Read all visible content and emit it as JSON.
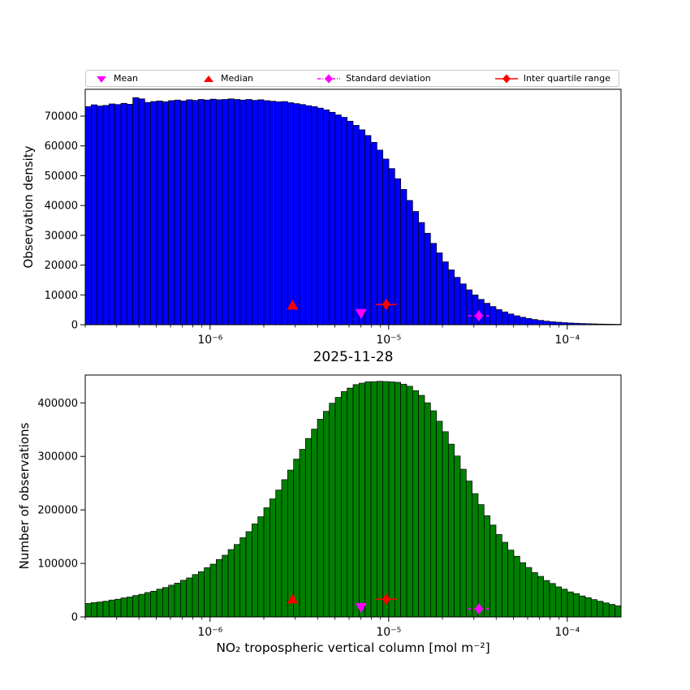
{
  "figure": {
    "title": "2025-11-28",
    "background": "#ffffff"
  },
  "legend": {
    "items": [
      {
        "label": "Mean",
        "marker": "triangle-down",
        "color": "#ff00ff",
        "line": "none"
      },
      {
        "label": "Median",
        "marker": "triangle-up",
        "color": "#ff0000",
        "line": "none"
      },
      {
        "label": "Standard deviation",
        "marker": "diamond",
        "color": "#ff00ff",
        "line": "dashdot"
      },
      {
        "label": "Inter quartile range",
        "marker": "diamond",
        "color": "#ff0000",
        "line": "solid"
      }
    ]
  },
  "chart_data": [
    {
      "type": "bar",
      "subtype": "histogram",
      "x_scale": "log",
      "xlim": [
        2e-07,
        0.0002
      ],
      "bin_edges_log10": {
        "min": -6.699,
        "max": -3.699,
        "count": 90
      },
      "values": [
        73200,
        73800,
        73400,
        73600,
        74100,
        73900,
        74300,
        74000,
        76200,
        75800,
        74600,
        74900,
        75100,
        74800,
        75200,
        75400,
        75100,
        75500,
        75300,
        75600,
        75400,
        75700,
        75500,
        75600,
        75800,
        75600,
        75400,
        75600,
        75300,
        75500,
        75200,
        75000,
        74800,
        74900,
        74500,
        74200,
        73900,
        73500,
        73200,
        72700,
        72100,
        71300,
        70400,
        69600,
        68300,
        66900,
        65400,
        63500,
        61200,
        58600,
        55600,
        52400,
        49000,
        45400,
        41700,
        38000,
        34300,
        30700,
        27300,
        24100,
        21100,
        18400,
        15900,
        13700,
        11700,
        10000,
        8500,
        7200,
        6100,
        5100,
        4300,
        3600,
        3000,
        2500,
        2100,
        1750,
        1450,
        1200,
        1000,
        840,
        700,
        580,
        480,
        400,
        340,
        280,
        230,
        195,
        160,
        135
      ],
      "title": "",
      "xlabel": "",
      "ylabel": "Observation density",
      "ylim": [
        0,
        79000
      ],
      "yticks": [
        0,
        10000,
        20000,
        30000,
        40000,
        50000,
        60000,
        70000
      ],
      "xticks": [
        {
          "value": 1e-06,
          "label": "10⁻⁶"
        },
        {
          "value": 1e-05,
          "label": "10⁻⁵"
        },
        {
          "value": 0.0001,
          "label": "10⁻⁴"
        }
      ],
      "grid": false,
      "bar_color": "#0000ff",
      "bar_edge": "#000000",
      "markers": [
        {
          "name": "mean",
          "shape": "triangle-down",
          "color": "#ff00ff",
          "x": 7e-06,
          "y": 3800,
          "line": "none"
        },
        {
          "name": "median",
          "shape": "triangle-up",
          "color": "#ff0000",
          "x": 2.9e-06,
          "y": 6500,
          "line": "none"
        },
        {
          "name": "standard-deviation",
          "shape": "diamond",
          "color": "#ff00ff",
          "x": 3.2e-05,
          "y": 3000,
          "line": "dashdot"
        },
        {
          "name": "inter-quartile-range",
          "shape": "diamond",
          "color": "#ff0000",
          "x": 9.7e-06,
          "y": 6800,
          "line": "solid"
        }
      ]
    },
    {
      "type": "bar",
      "subtype": "histogram",
      "x_scale": "log",
      "xlim": [
        2e-07,
        0.0002
      ],
      "bin_edges_log10": {
        "min": -6.699,
        "max": -3.699,
        "count": 90
      },
      "values": [
        25100,
        26700,
        27900,
        29400,
        31600,
        33100,
        35500,
        37200,
        40100,
        42300,
        45600,
        48100,
        51900,
        55000,
        59400,
        63200,
        68500,
        72900,
        79200,
        84600,
        92100,
        98600,
        107400,
        115300,
        125900,
        135400,
        148000,
        159300,
        173800,
        187200,
        204000,
        220600,
        237100,
        256500,
        274400,
        294900,
        313200,
        333500,
        350900,
        369400,
        384200,
        399300,
        410200,
        421100,
        427600,
        434100,
        436800,
        439400,
        439600,
        440300,
        439800,
        439200,
        438400,
        434900,
        431000,
        422800,
        414000,
        400100,
        385200,
        365700,
        346100,
        322800,
        300700,
        276000,
        253900,
        230400,
        209900,
        189200,
        171700,
        154000,
        139500,
        124900,
        113400,
        101500,
        92400,
        82900,
        75800,
        68100,
        62500,
        56200,
        51900,
        46800,
        43500,
        39200,
        36100,
        32400,
        29300,
        26200,
        23400,
        20800
      ],
      "title": "",
      "xlabel": "NO₂ tropospheric vertical column [mol m⁻²]",
      "ylabel": "Number of observations",
      "ylim": [
        0,
        452000
      ],
      "yticks": [
        0,
        100000,
        200000,
        300000,
        400000
      ],
      "xticks": [
        {
          "value": 1e-06,
          "label": "10⁻⁶"
        },
        {
          "value": 1e-05,
          "label": "10⁻⁵"
        },
        {
          "value": 0.0001,
          "label": "10⁻⁴"
        }
      ],
      "grid": false,
      "bar_color": "#008000",
      "bar_edge": "#000000",
      "markers": [
        {
          "name": "mean",
          "shape": "triangle-down",
          "color": "#ff00ff",
          "x": 7e-06,
          "y": 18000,
          "line": "none"
        },
        {
          "name": "median",
          "shape": "triangle-up",
          "color": "#ff0000",
          "x": 2.9e-06,
          "y": 33000,
          "line": "none"
        },
        {
          "name": "standard-deviation",
          "shape": "diamond",
          "color": "#ff00ff",
          "x": 3.2e-05,
          "y": 15000,
          "line": "dashdot"
        },
        {
          "name": "inter-quartile-range",
          "shape": "diamond",
          "color": "#ff0000",
          "x": 9.7e-06,
          "y": 33000,
          "line": "solid"
        }
      ]
    }
  ]
}
